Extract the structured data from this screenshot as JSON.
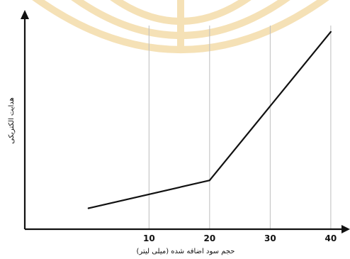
{
  "chart_data": {
    "type": "line",
    "title": "",
    "xlabel": "حجم سود اضافه شده (میلی لیتر)",
    "ylabel": "هدایت الکتریکی",
    "xlim": [
      -10.5,
      42
    ],
    "ylim": [
      0,
      100
    ],
    "x_ticks": [
      "10",
      "20",
      "30",
      "40"
    ],
    "grid": "vertical",
    "legend": "none",
    "series": [
      {
        "x": [
          0,
          20,
          40
        ],
        "y": [
          10.5,
          24.5,
          99
        ]
      }
    ],
    "colors": {
      "line": "#111111",
      "axis": "#111111",
      "grid": "#bdbdbd",
      "watermark": "#f2d79e"
    }
  }
}
